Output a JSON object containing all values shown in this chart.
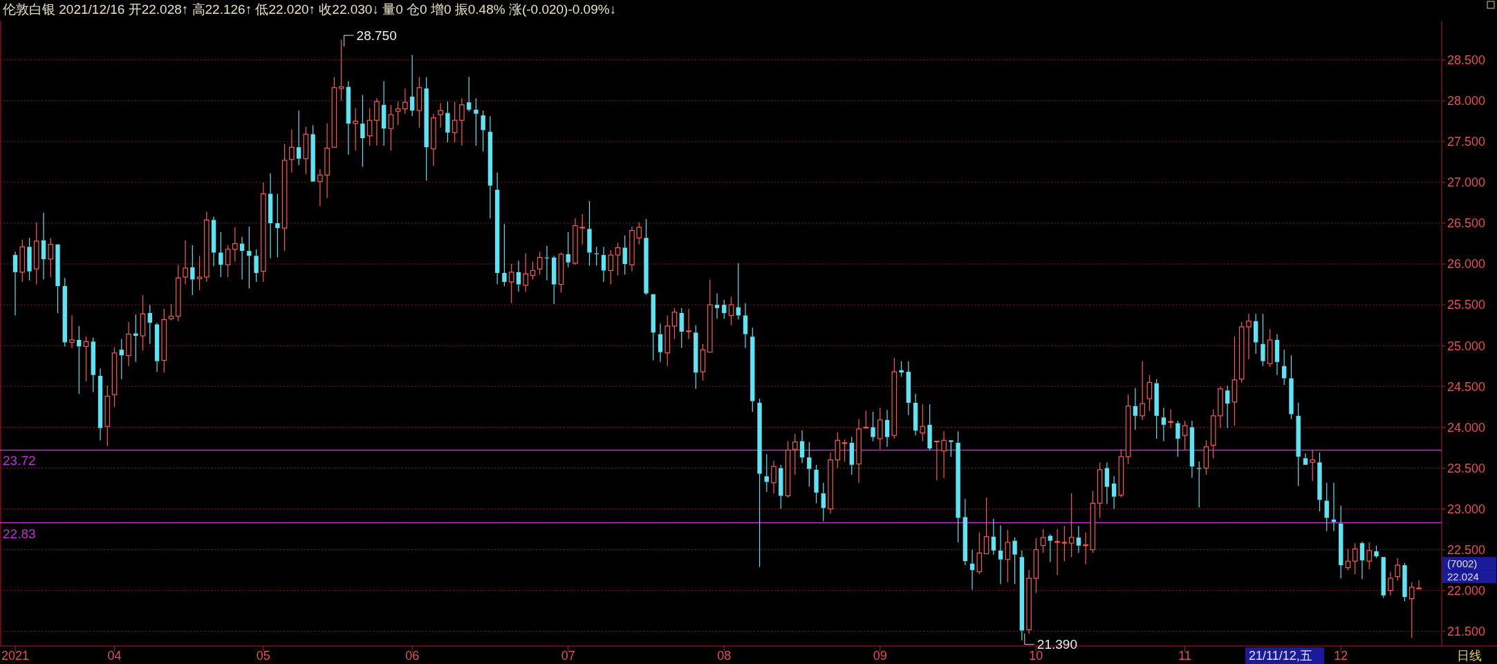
{
  "chart_data": {
    "type": "candlestick",
    "title": "伦敦白银 2021/12/16 开22.028↑ 高22.126↑ 低22.020↑ 收22.030↓ 量0 仓0 增0 振0.48% 涨(-0.020)-0.09%↓",
    "categories": [
      "2021",
      null,
      null,
      null,
      null,
      null,
      null,
      null,
      null,
      null,
      null,
      null,
      null,
      null,
      "04",
      null,
      null,
      null,
      null,
      null,
      null,
      null,
      null,
      null,
      null,
      null,
      null,
      null,
      null,
      null,
      null,
      null,
      null,
      null,
      null,
      "05",
      null,
      null,
      null,
      null,
      null,
      null,
      null,
      null,
      null,
      null,
      null,
      null,
      null,
      null,
      null,
      null,
      null,
      null,
      null,
      null,
      "06",
      null,
      null,
      null,
      null,
      null,
      null,
      null,
      null,
      null,
      null,
      null,
      null,
      null,
      null,
      null,
      null,
      null,
      null,
      null,
      null,
      null,
      "07",
      null,
      null,
      null,
      null,
      null,
      null,
      null,
      null,
      null,
      null,
      null,
      null,
      null,
      null,
      null,
      null,
      null,
      null,
      null,
      null,
      null,
      "08",
      null,
      null,
      null,
      null,
      null,
      null,
      null,
      null,
      null,
      null,
      null,
      null,
      null,
      null,
      null,
      null,
      null,
      null,
      null,
      null,
      null,
      "09",
      null,
      null,
      null,
      null,
      null,
      null,
      null,
      null,
      null,
      null,
      null,
      null,
      null,
      null,
      null,
      null,
      null,
      null,
      null,
      null,
      null,
      "10",
      null,
      null,
      null,
      null,
      null,
      null,
      null,
      null,
      null,
      null,
      null,
      null,
      null,
      null,
      null,
      null,
      null,
      null,
      null,
      null,
      "11",
      null,
      null,
      null,
      null,
      null,
      null,
      null,
      null,
      null,
      null,
      null,
      null,
      null,
      null,
      null,
      null,
      null,
      null,
      null,
      null,
      null,
      "12",
      null,
      null,
      null,
      null,
      null,
      null,
      null,
      null,
      null,
      null,
      null
    ],
    "ohlc": [
      [
        26.11,
        26.15,
        25.37,
        25.9
      ],
      [
        25.9,
        26.3,
        25.78,
        26.21
      ],
      [
        26.21,
        26.32,
        25.8,
        25.91
      ],
      [
        25.94,
        26.51,
        25.75,
        26.28
      ],
      [
        26.29,
        26.63,
        25.81,
        26.06
      ],
      [
        26.06,
        26.32,
        25.84,
        26.24
      ],
      [
        26.24,
        26.25,
        25.4,
        25.73
      ],
      [
        25.73,
        25.83,
        24.99,
        25.04
      ],
      [
        25.04,
        25.37,
        24.97,
        25.07
      ],
      [
        25.07,
        25.24,
        24.41,
        24.99
      ],
      [
        24.99,
        25.11,
        24.56,
        25.05
      ],
      [
        25.05,
        25.1,
        24.43,
        24.64
      ],
      [
        24.63,
        24.72,
        23.84,
        23.99
      ],
      [
        24.01,
        24.51,
        23.77,
        24.38
      ],
      [
        24.4,
        24.98,
        24.25,
        24.91
      ],
      [
        24.95,
        25.08,
        24.59,
        24.88
      ],
      [
        24.88,
        25.29,
        24.75,
        25.14
      ],
      [
        25.15,
        25.38,
        24.8,
        25.12
      ],
      [
        25.12,
        25.62,
        24.94,
        25.39
      ],
      [
        25.4,
        25.5,
        25.02,
        25.28
      ],
      [
        25.26,
        25.28,
        24.68,
        24.81
      ],
      [
        24.82,
        25.45,
        24.67,
        25.32
      ],
      [
        25.33,
        25.51,
        25.31,
        25.36
      ],
      [
        25.36,
        25.99,
        25.3,
        25.83
      ],
      [
        25.84,
        26.29,
        25.75,
        25.95
      ],
      [
        25.96,
        26.23,
        25.62,
        25.81
      ],
      [
        25.82,
        26.1,
        25.68,
        25.84
      ],
      [
        25.84,
        26.64,
        25.78,
        26.54
      ],
      [
        26.54,
        26.58,
        25.97,
        26.14
      ],
      [
        26.14,
        26.39,
        25.84,
        25.99
      ],
      [
        25.99,
        26.23,
        25.84,
        26.18
      ],
      [
        26.18,
        26.45,
        26.03,
        26.25
      ],
      [
        26.25,
        26.33,
        25.81,
        26.16
      ],
      [
        26.16,
        26.46,
        25.7,
        26.1
      ],
      [
        26.1,
        26.18,
        25.78,
        25.89
      ],
      [
        25.91,
        27.0,
        25.78,
        26.86
      ],
      [
        26.86,
        27.11,
        26.07,
        26.5
      ],
      [
        26.5,
        26.86,
        26.08,
        26.44
      ],
      [
        26.44,
        27.47,
        26.16,
        27.27
      ],
      [
        27.28,
        27.65,
        27.12,
        27.43
      ],
      [
        27.43,
        27.88,
        27.21,
        27.29
      ],
      [
        27.29,
        27.68,
        27.1,
        27.59
      ],
      [
        27.59,
        27.7,
        27.0,
        27.01
      ],
      [
        27.01,
        27.16,
        26.71,
        27.09
      ],
      [
        27.09,
        27.72,
        26.81,
        27.42
      ],
      [
        27.43,
        28.29,
        27.42,
        28.16
      ],
      [
        28.15,
        28.75,
        28.0,
        28.17
      ],
      [
        28.17,
        28.24,
        27.34,
        27.72
      ],
      [
        27.72,
        27.91,
        27.39,
        27.75
      ],
      [
        27.72,
        28.07,
        27.19,
        27.54
      ],
      [
        27.57,
        27.91,
        27.45,
        27.76
      ],
      [
        27.76,
        28.03,
        27.45,
        27.99
      ],
      [
        27.95,
        28.24,
        27.45,
        27.66
      ],
      [
        27.66,
        27.95,
        27.39,
        27.83
      ],
      [
        27.87,
        27.99,
        27.7,
        27.9
      ],
      [
        27.9,
        28.15,
        27.84,
        27.98
      ],
      [
        28.05,
        28.56,
        27.81,
        27.88
      ],
      [
        27.88,
        28.29,
        27.67,
        28.16
      ],
      [
        28.15,
        28.29,
        27.02,
        27.43
      ],
      [
        27.41,
        27.84,
        27.2,
        27.79
      ],
      [
        27.83,
        27.97,
        27.67,
        27.88
      ],
      [
        27.85,
        27.99,
        27.49,
        27.61
      ],
      [
        27.61,
        27.99,
        27.49,
        27.76
      ],
      [
        27.76,
        28.03,
        27.45,
        27.95
      ],
      [
        27.98,
        28.29,
        27.87,
        27.89
      ],
      [
        27.89,
        28.03,
        27.45,
        27.84
      ],
      [
        27.82,
        27.88,
        27.38,
        27.64
      ],
      [
        27.62,
        27.81,
        26.56,
        26.96
      ],
      [
        26.91,
        27.12,
        25.75,
        25.89
      ],
      [
        25.89,
        26.49,
        25.73,
        25.78
      ],
      [
        25.78,
        26.0,
        25.52,
        25.9
      ],
      [
        25.9,
        26.04,
        25.66,
        25.75
      ],
      [
        25.74,
        26.13,
        25.66,
        25.88
      ],
      [
        25.86,
        26.03,
        25.81,
        25.92
      ],
      [
        25.94,
        26.15,
        25.87,
        26.08
      ],
      [
        26.08,
        26.22,
        25.8,
        26.07
      ],
      [
        26.08,
        26.1,
        25.51,
        25.75
      ],
      [
        25.75,
        26.14,
        25.65,
        26.12
      ],
      [
        26.12,
        26.39,
        25.96,
        26.02
      ],
      [
        26.01,
        26.56,
        25.99,
        26.47
      ],
      [
        26.45,
        26.61,
        26.24,
        26.45
      ],
      [
        26.43,
        26.77,
        25.98,
        26.14
      ],
      [
        26.13,
        26.21,
        25.98,
        26.12
      ],
      [
        26.11,
        26.21,
        25.78,
        25.92
      ],
      [
        25.92,
        26.17,
        25.75,
        26.11
      ],
      [
        26.11,
        26.26,
        25.86,
        26.2
      ],
      [
        26.2,
        26.35,
        25.87,
        26.0
      ],
      [
        25.99,
        26.46,
        25.91,
        26.41
      ],
      [
        26.32,
        26.51,
        26.24,
        26.45
      ],
      [
        26.32,
        26.55,
        25.62,
        25.64
      ],
      [
        25.63,
        25.64,
        24.82,
        25.16
      ],
      [
        25.14,
        25.27,
        24.8,
        24.92
      ],
      [
        24.91,
        25.37,
        24.75,
        25.24
      ],
      [
        25.24,
        25.46,
        25.08,
        25.41
      ],
      [
        25.4,
        25.46,
        24.97,
        25.17
      ],
      [
        25.18,
        25.45,
        25.08,
        25.18
      ],
      [
        25.16,
        25.25,
        24.47,
        24.67
      ],
      [
        24.68,
        25.02,
        24.57,
        24.95
      ],
      [
        24.92,
        25.81,
        24.91,
        25.5
      ],
      [
        25.5,
        25.64,
        25.33,
        25.46
      ],
      [
        25.5,
        25.56,
        25.33,
        25.4
      ],
      [
        25.37,
        25.6,
        25.25,
        25.5
      ],
      [
        25.47,
        26.01,
        25.32,
        25.37
      ],
      [
        25.37,
        25.52,
        24.97,
        25.14
      ],
      [
        25.11,
        25.22,
        24.19,
        24.32
      ],
      [
        24.3,
        24.35,
        22.29,
        23.43
      ],
      [
        23.4,
        23.67,
        23.21,
        23.33
      ],
      [
        23.32,
        23.59,
        23.19,
        23.52
      ],
      [
        23.5,
        23.54,
        23.0,
        23.16
      ],
      [
        23.16,
        23.83,
        23.14,
        23.72
      ],
      [
        23.73,
        23.92,
        23.42,
        23.82
      ],
      [
        23.83,
        23.96,
        23.56,
        23.63
      ],
      [
        23.63,
        23.82,
        23.27,
        23.49
      ],
      [
        23.48,
        23.54,
        23.07,
        23.2
      ],
      [
        23.19,
        23.32,
        22.85,
        23.01
      ],
      [
        23.0,
        23.69,
        22.94,
        23.6
      ],
      [
        23.6,
        23.94,
        23.5,
        23.84
      ],
      [
        23.81,
        23.85,
        23.58,
        23.81
      ],
      [
        23.81,
        23.88,
        23.42,
        23.54
      ],
      [
        23.55,
        24.1,
        23.32,
        23.98
      ],
      [
        23.99,
        24.2,
        23.98,
        24.0
      ],
      [
        24.0,
        24.19,
        23.83,
        23.88
      ],
      [
        23.86,
        24.24,
        23.73,
        24.09
      ],
      [
        24.09,
        24.21,
        23.76,
        23.88
      ],
      [
        23.9,
        24.85,
        23.86,
        24.68
      ],
      [
        24.7,
        24.81,
        24.62,
        24.67
      ],
      [
        24.68,
        24.81,
        24.15,
        24.3
      ],
      [
        24.3,
        24.41,
        23.9,
        23.96
      ],
      [
        23.93,
        24.28,
        23.83,
        24.01
      ],
      [
        24.03,
        24.28,
        23.72,
        23.74
      ],
      [
        23.83,
        23.84,
        23.35,
        23.83
      ],
      [
        23.71,
        23.95,
        23.38,
        23.84
      ],
      [
        23.84,
        23.85,
        23.64,
        23.82
      ],
      [
        23.81,
        23.95,
        22.59,
        22.89
      ],
      [
        22.9,
        23.12,
        22.31,
        22.36
      ],
      [
        22.33,
        22.5,
        22.01,
        22.25
      ],
      [
        22.23,
        22.71,
        22.2,
        22.46
      ],
      [
        22.45,
        23.14,
        22.44,
        22.66
      ],
      [
        22.66,
        22.88,
        22.44,
        22.49
      ],
      [
        22.49,
        22.8,
        22.08,
        22.38
      ],
      [
        22.38,
        22.74,
        22.1,
        22.59
      ],
      [
        22.61,
        22.65,
        22.08,
        22.44
      ],
      [
        22.41,
        22.49,
        21.39,
        21.51
      ],
      [
        21.52,
        22.25,
        21.47,
        22.15
      ],
      [
        22.15,
        22.64,
        21.97,
        22.5
      ],
      [
        22.55,
        22.75,
        22.46,
        22.65
      ],
      [
        22.67,
        22.69,
        22.35,
        22.61
      ],
      [
        22.59,
        22.75,
        22.19,
        22.6
      ],
      [
        22.59,
        22.79,
        22.36,
        22.59
      ],
      [
        22.58,
        23.19,
        22.41,
        22.65
      ],
      [
        22.65,
        22.79,
        22.46,
        22.55
      ],
      [
        22.55,
        22.71,
        22.32,
        22.56
      ],
      [
        22.5,
        23.22,
        22.46,
        23.07
      ],
      [
        23.07,
        23.57,
        22.89,
        23.48
      ],
      [
        23.5,
        23.57,
        23.06,
        23.27
      ],
      [
        23.31,
        23.4,
        23.0,
        23.15
      ],
      [
        23.17,
        23.73,
        23.14,
        23.64
      ],
      [
        23.64,
        24.4,
        23.55,
        24.26
      ],
      [
        24.26,
        24.48,
        23.97,
        24.14
      ],
      [
        24.14,
        24.81,
        24.09,
        24.29
      ],
      [
        24.35,
        24.64,
        24.2,
        24.55
      ],
      [
        24.54,
        24.59,
        23.86,
        24.14
      ],
      [
        24.12,
        24.24,
        23.83,
        24.03
      ],
      [
        24.06,
        24.22,
        23.99,
        24.07
      ],
      [
        24.05,
        24.08,
        23.64,
        23.86
      ],
      [
        23.9,
        24.08,
        23.72,
        24.02
      ],
      [
        24.0,
        24.08,
        23.38,
        23.52
      ],
      [
        23.5,
        23.58,
        23.02,
        23.49
      ],
      [
        23.5,
        23.84,
        23.42,
        23.76
      ],
      [
        23.78,
        24.22,
        23.62,
        24.14
      ],
      [
        24.14,
        24.5,
        23.99,
        24.47
      ],
      [
        24.45,
        24.51,
        23.99,
        24.29
      ],
      [
        24.31,
        25.11,
        24.02,
        24.58
      ],
      [
        24.59,
        25.29,
        24.55,
        25.23
      ],
      [
        25.23,
        25.39,
        24.83,
        25.3
      ],
      [
        25.3,
        25.39,
        24.9,
        25.04
      ],
      [
        25.02,
        25.39,
        24.75,
        24.81
      ],
      [
        24.78,
        25.2,
        24.74,
        25.07
      ],
      [
        25.07,
        25.14,
        24.64,
        24.8
      ],
      [
        24.75,
        24.95,
        24.52,
        24.6
      ],
      [
        24.6,
        24.88,
        24.1,
        24.16
      ],
      [
        24.14,
        24.3,
        23.28,
        23.64
      ],
      [
        23.62,
        23.68,
        23.53,
        23.54
      ],
      [
        23.57,
        23.72,
        23.34,
        23.6
      ],
      [
        23.57,
        23.69,
        22.97,
        23.11
      ],
      [
        23.1,
        23.32,
        22.73,
        22.89
      ],
      [
        22.87,
        23.32,
        22.73,
        22.84
      ],
      [
        22.82,
        23.04,
        22.15,
        22.31
      ],
      [
        22.28,
        22.51,
        22.25,
        22.36
      ],
      [
        22.36,
        22.58,
        22.2,
        22.51
      ],
      [
        22.58,
        22.6,
        22.14,
        22.37
      ],
      [
        22.36,
        22.59,
        22.26,
        22.49
      ],
      [
        22.48,
        22.55,
        22.4,
        22.42
      ],
      [
        22.41,
        22.42,
        21.91,
        21.94
      ],
      [
        22.0,
        22.23,
        21.94,
        22.15
      ],
      [
        22.17,
        22.4,
        22.12,
        22.31
      ],
      [
        22.31,
        22.34,
        21.87,
        21.92
      ],
      [
        21.9,
        22.1,
        21.42,
        22.04
      ],
      [
        22.028,
        22.126,
        22.02,
        22.03
      ]
    ],
    "ylim": [
      21.32,
      28.98
    ],
    "yticks": [
      {
        "value": 21.5,
        "label": "21.500"
      },
      {
        "value": 22,
        "label": "22.000"
      },
      {
        "value": 22.5,
        "label": "22.500"
      },
      {
        "value": 23,
        "label": "23.000"
      },
      {
        "value": 23.5,
        "label": "23.500"
      },
      {
        "value": 24,
        "label": "24.000"
      },
      {
        "value": 24.5,
        "label": "24.500"
      },
      {
        "value": 25,
        "label": "25.000"
      },
      {
        "value": 25.5,
        "label": "25.500"
      },
      {
        "value": 26,
        "label": "26.000"
      },
      {
        "value": 26.5,
        "label": "26.500"
      },
      {
        "value": 27,
        "label": "27.000"
      },
      {
        "value": 27.5,
        "label": "27.500"
      },
      {
        "value": 28,
        "label": "28.000"
      },
      {
        "value": 28.5,
        "label": "28.500"
      }
    ],
    "grid": "y",
    "ref_lines": [
      {
        "axis": "y",
        "value": 23.72,
        "label": "23.72",
        "color": "#c030d0"
      },
      {
        "axis": "y",
        "value": 22.83,
        "label": "22.83",
        "color": "#c030d0"
      }
    ],
    "annotations": [
      "28.750",
      "21.390",
      "22.024",
      "(7002)",
      "21/11/12,五",
      "日线"
    ]
  }
}
